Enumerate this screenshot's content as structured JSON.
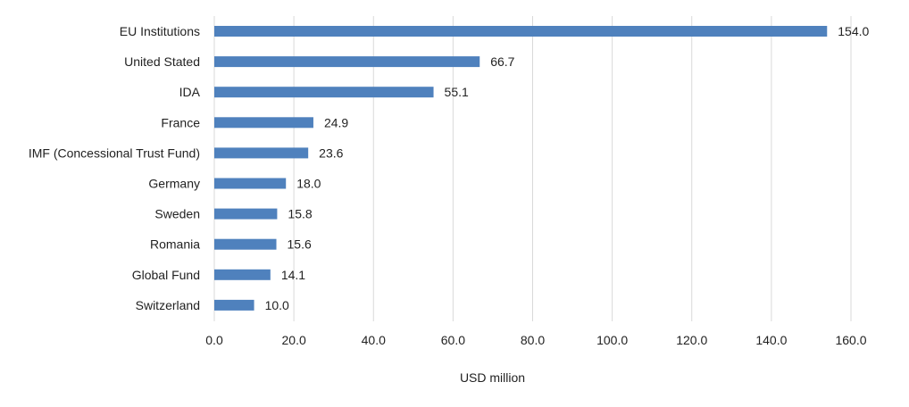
{
  "chart_data": {
    "type": "bar",
    "orientation": "horizontal",
    "categories": [
      "EU Institutions",
      "United Stated",
      "IDA",
      "France",
      "IMF (Concessional Trust Fund)",
      "Germany",
      "Sweden",
      "Romania",
      "Global Fund",
      "Switzerland"
    ],
    "values": [
      154.0,
      66.7,
      55.1,
      24.9,
      23.6,
      18.0,
      15.8,
      15.6,
      14.1,
      10.0
    ],
    "value_labels": [
      "154.0",
      "66.7",
      "55.1",
      "24.9",
      "23.6",
      "18.0",
      "15.8",
      "15.6",
      "14.1",
      "10.0"
    ],
    "title": "",
    "xlabel": "USD million",
    "ylabel": "",
    "xlim": [
      0,
      160
    ],
    "x_ticks": [
      0,
      20,
      40,
      60,
      80,
      100,
      120,
      140,
      160
    ],
    "x_tick_labels": [
      "0.0",
      "20.0",
      "40.0",
      "60.0",
      "80.0",
      "100.0",
      "120.0",
      "140.0",
      "160.0"
    ],
    "grid": "vertical",
    "legend": "none",
    "bar_color": "#4f81bd",
    "grid_color": "#d9d9d9"
  }
}
